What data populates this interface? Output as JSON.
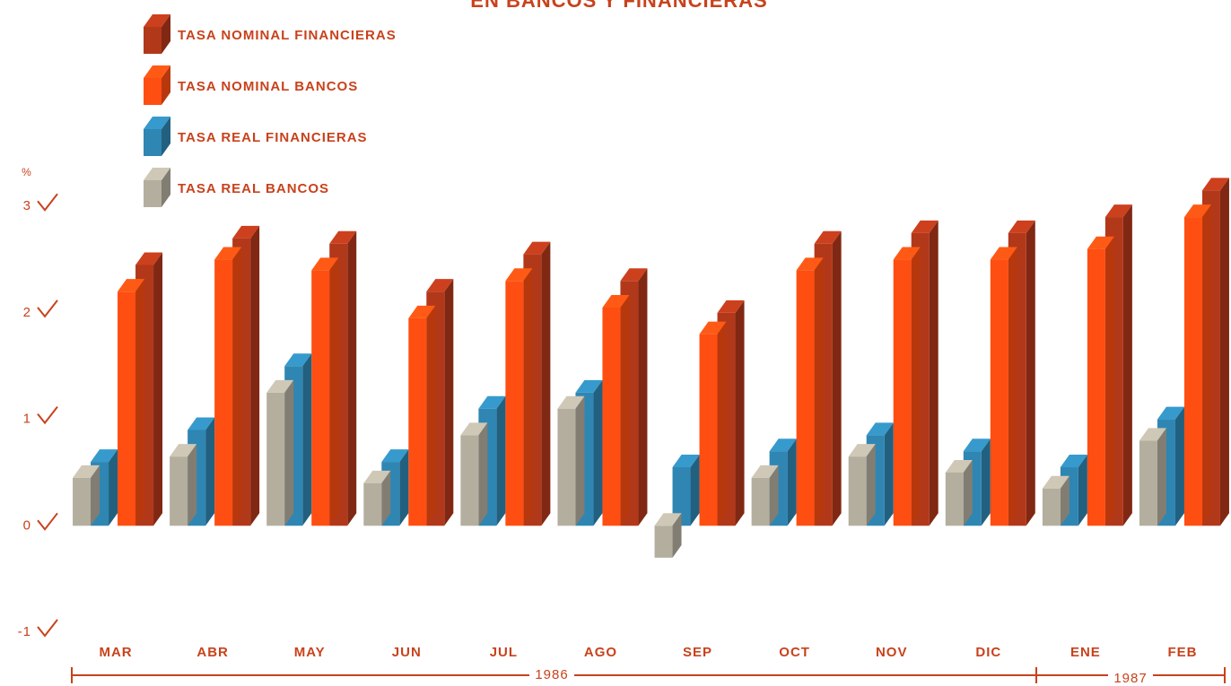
{
  "chart_data": {
    "type": "bar",
    "title": "EN BANCOS Y FINANCIERAS",
    "y_label": "%",
    "categories": [
      "MAR",
      "ABR",
      "MAY",
      "JUN",
      "JUL",
      "AGO",
      "SEP",
      "OCT",
      "NOV",
      "DIC",
      "ENE",
      "FEB"
    ],
    "series": [
      {
        "name": "TASA NOMINAL FINANCIERAS",
        "color": "#b2381a",
        "values": [
          2.45,
          2.7,
          2.65,
          2.2,
          2.55,
          2.3,
          2.0,
          2.65,
          2.75,
          2.75,
          2.9,
          3.15
        ]
      },
      {
        "name": "TASA NOMINAL BANCOS",
        "color": "#ff4e12",
        "values": [
          2.2,
          2.5,
          2.4,
          1.95,
          2.3,
          2.05,
          1.8,
          2.4,
          2.5,
          2.5,
          2.6,
          2.9
        ]
      },
      {
        "name": "TASA REAL FINANCIERAS",
        "color": "#2f86b2",
        "values": [
          0.6,
          0.9,
          1.5,
          0.6,
          1.1,
          1.25,
          0.55,
          0.7,
          0.85,
          0.7,
          0.55,
          1.0
        ]
      },
      {
        "name": "TASA REAL BANCOS",
        "color": "#b4ae9e",
        "values": [
          0.45,
          0.65,
          1.25,
          0.4,
          0.85,
          1.1,
          -0.3,
          0.45,
          0.65,
          0.5,
          0.35,
          0.8
        ]
      }
    ],
    "ylim": [
      -1,
      3.3
    ],
    "yticks": [
      -1,
      0,
      1,
      2,
      3
    ],
    "year_labels": [
      "1986",
      "1987"
    ]
  }
}
